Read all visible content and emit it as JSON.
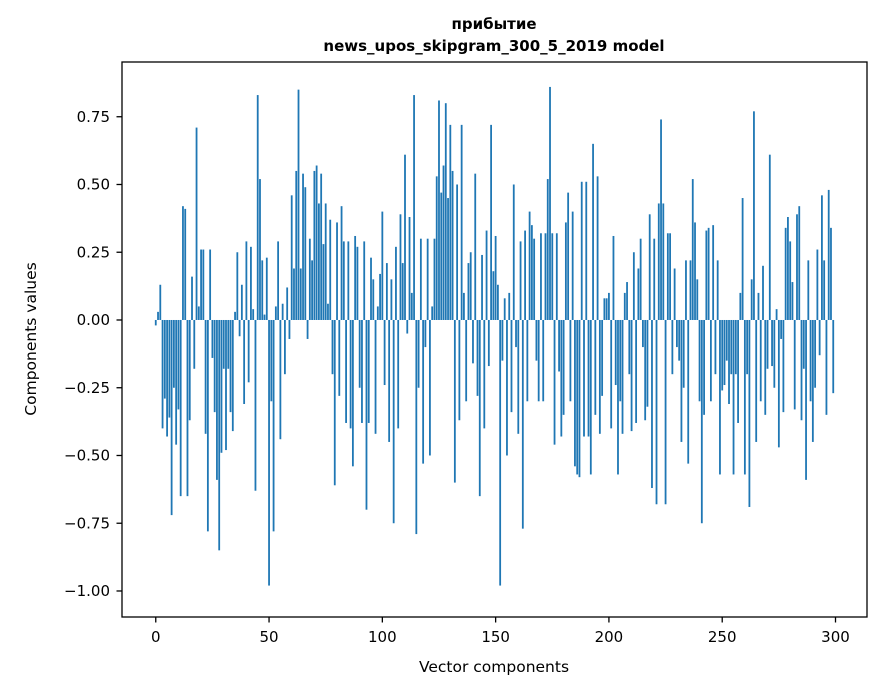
{
  "title": {
    "line1": "прибытие",
    "line2": "news_upos_skipgram_300_5_2019 model"
  },
  "chart_data": {
    "type": "bar",
    "title": "прибытие\nnews_upos_skipgram_300_5_2019 model",
    "xlabel": "Vector components",
    "ylabel": "Components values",
    "x_tick_labels": [
      "0",
      "50",
      "100",
      "150",
      "200",
      "250",
      "300"
    ],
    "x_ticks": [
      0,
      50,
      100,
      150,
      200,
      250,
      300
    ],
    "y_tick_labels": [
      "0.75",
      "0.50",
      "0.25",
      "0.00",
      "−0.25",
      "−0.50",
      "−0.75",
      "−1.00"
    ],
    "y_ticks": [
      0.75,
      0.5,
      0.25,
      0.0,
      -0.25,
      -0.5,
      -0.75,
      -1.0
    ],
    "xlim": [
      -14.9,
      313.9
    ],
    "ylim": [
      -1.096,
      0.952
    ],
    "bar_color": "#1f77b4",
    "grid": false,
    "legend": null,
    "n_components": 300,
    "values": [
      -0.02,
      0.03,
      0.13,
      -0.4,
      -0.29,
      -0.43,
      -0.36,
      -0.72,
      -0.25,
      -0.46,
      -0.33,
      -0.65,
      0.42,
      0.41,
      -0.65,
      -0.37,
      0.16,
      -0.18,
      0.71,
      0.05,
      0.26,
      0.26,
      -0.42,
      -0.78,
      0.26,
      -0.14,
      -0.34,
      -0.59,
      -0.85,
      -0.49,
      -0.18,
      -0.48,
      -0.18,
      -0.34,
      -0.41,
      0.03,
      0.25,
      -0.06,
      0.13,
      -0.31,
      0.29,
      -0.23,
      0.27,
      0.04,
      -0.63,
      0.83,
      0.52,
      0.22,
      0.02,
      0.23,
      -0.98,
      -0.3,
      -0.78,
      0.05,
      0.29,
      -0.44,
      0.06,
      -0.2,
      0.12,
      -0.07,
      0.46,
      0.19,
      0.55,
      0.85,
      0.19,
      0.54,
      0.49,
      -0.07,
      0.3,
      0.22,
      0.55,
      0.57,
      0.43,
      0.54,
      0.28,
      0.43,
      0.06,
      0.37,
      -0.2,
      -0.61,
      0.36,
      -0.28,
      0.42,
      0.29,
      -0.38,
      0.29,
      -0.4,
      -0.54,
      0.31,
      0.27,
      -0.25,
      -0.38,
      0.29,
      -0.7,
      -0.38,
      0.23,
      0.15,
      -0.42,
      0.05,
      0.17,
      0.4,
      -0.24,
      0.21,
      -0.45,
      0.15,
      -0.75,
      0.27,
      -0.4,
      0.39,
      0.21,
      0.61,
      -0.05,
      0.38,
      0.1,
      0.83,
      -0.79,
      -0.25,
      0.3,
      -0.53,
      -0.1,
      0.3,
      -0.5,
      0.05,
      0.3,
      0.53,
      0.81,
      0.47,
      0.57,
      0.8,
      0.45,
      0.72,
      0.55,
      -0.6,
      0.5,
      -0.37,
      0.72,
      0.1,
      -0.3,
      0.21,
      0.25,
      -0.16,
      0.54,
      -0.28,
      -0.65,
      0.24,
      -0.4,
      0.33,
      -0.17,
      0.72,
      0.18,
      0.31,
      0.13,
      -0.98,
      -0.15,
      0.08,
      -0.5,
      0.1,
      -0.34,
      0.5,
      -0.1,
      -0.42,
      0.29,
      -0.77,
      0.33,
      -0.3,
      0.4,
      0.35,
      0.3,
      -0.15,
      -0.3,
      0.32,
      -0.3,
      0.32,
      0.52,
      0.86,
      0.32,
      -0.46,
      0.32,
      -0.19,
      -0.43,
      -0.35,
      0.36,
      0.47,
      -0.3,
      0.4,
      -0.54,
      -0.57,
      -0.58,
      0.51,
      -0.43,
      0.51,
      -0.43,
      -0.57,
      0.65,
      -0.35,
      0.53,
      -0.42,
      -0.28,
      0.08,
      0.08,
      0.1,
      -0.4,
      0.31,
      -0.24,
      -0.57,
      -0.3,
      -0.42,
      0.1,
      0.14,
      -0.2,
      -0.41,
      0.25,
      -0.38,
      0.19,
      0.3,
      -0.1,
      -0.37,
      -0.32,
      0.39,
      -0.62,
      0.3,
      -0.68,
      0.43,
      0.74,
      0.43,
      -0.68,
      0.32,
      0.32,
      -0.2,
      0.19,
      -0.1,
      -0.15,
      -0.45,
      -0.25,
      0.22,
      -0.53,
      0.22,
      0.52,
      0.36,
      0.15,
      -0.3,
      -0.75,
      -0.35,
      0.33,
      0.34,
      -0.3,
      0.35,
      -0.2,
      0.22,
      -0.57,
      -0.26,
      -0.24,
      -0.15,
      -0.31,
      -0.2,
      -0.57,
      -0.2,
      -0.38,
      0.1,
      0.45,
      -0.57,
      -0.2,
      -0.69,
      0.15,
      0.77,
      -0.45,
      0.1,
      -0.3,
      0.2,
      -0.35,
      -0.18,
      0.61,
      -0.17,
      -0.25,
      0.04,
      -0.47,
      -0.07,
      -0.34,
      0.34,
      0.38,
      0.29,
      0.14,
      -0.33,
      0.39,
      0.42,
      -0.37,
      -0.18,
      -0.59,
      0.22,
      -0.3,
      -0.45,
      -0.25,
      0.26,
      -0.13,
      0.46,
      0.22,
      -0.35,
      0.48,
      0.34,
      -0.27
    ]
  }
}
